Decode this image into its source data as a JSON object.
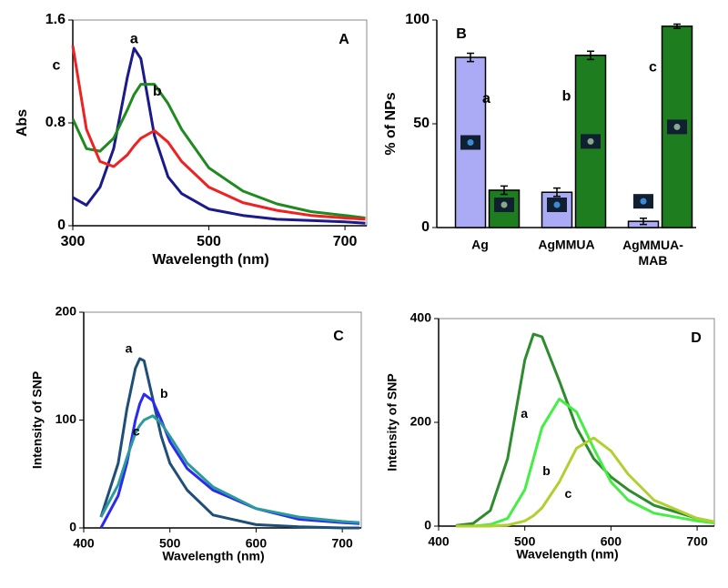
{
  "chart_data": [
    {
      "type": "line",
      "title": "A",
      "xlabel": "Wavelength (nm)",
      "ylabel": "Abs",
      "frame": true,
      "x": [
        300,
        320,
        340,
        360,
        380,
        390,
        400,
        420,
        440,
        460,
        500,
        550,
        600,
        650,
        700,
        730
      ],
      "xlim": [
        300,
        732
      ],
      "xticks": [
        300,
        500,
        700
      ],
      "ylim": [
        0,
        1.6
      ],
      "yticks": [
        0,
        0.8,
        1.6
      ],
      "series": [
        {
          "name": "a",
          "color": "#1a1a8c",
          "values": [
            0.22,
            0.16,
            0.3,
            0.6,
            1.15,
            1.38,
            1.3,
            0.7,
            0.38,
            0.25,
            0.13,
            0.08,
            0.05,
            0.04,
            0.03,
            0.02
          ]
        },
        {
          "name": "b",
          "color": "#1f8a1f",
          "values": [
            0.83,
            0.6,
            0.58,
            0.68,
            0.9,
            1.02,
            1.1,
            1.1,
            0.95,
            0.75,
            0.45,
            0.27,
            0.17,
            0.11,
            0.08,
            0.06
          ]
        },
        {
          "name": "c",
          "color": "#ee2222",
          "values": [
            1.4,
            0.75,
            0.5,
            0.46,
            0.55,
            0.62,
            0.68,
            0.74,
            0.65,
            0.5,
            0.3,
            0.18,
            0.12,
            0.08,
            0.06,
            0.05
          ]
        }
      ]
    },
    {
      "type": "bar",
      "title": "B",
      "ylabel": "% of NPs",
      "frame": false,
      "categories": [
        "Ag",
        "AgMMUA",
        "AgMMUA-MAB"
      ],
      "annotations": [
        "a",
        "b",
        "c"
      ],
      "ylim": [
        0,
        100
      ],
      "yticks": [
        0,
        50,
        100
      ],
      "series": [
        {
          "color": "#aaaaf5",
          "values": [
            82,
            17,
            3
          ],
          "errors": [
            2,
            2,
            1.5
          ]
        },
        {
          "color": "#1e7d1e",
          "values": [
            18,
            83,
            97
          ],
          "errors": [
            2,
            2,
            1
          ]
        }
      ]
    },
    {
      "type": "line",
      "title": "C",
      "xlabel": "Wavelength (nm)",
      "ylabel": "Intensity of SNP",
      "frame": true,
      "x": [
        420,
        440,
        450,
        460,
        465,
        470,
        480,
        490,
        500,
        520,
        550,
        600,
        650,
        700,
        720
      ],
      "xlim": [
        400,
        722
      ],
      "xticks": [
        400,
        500,
        600,
        700
      ],
      "ylim": [
        0,
        200
      ],
      "yticks": [
        0,
        100,
        200
      ],
      "series": [
        {
          "name": "a",
          "color": "#1f4e79",
          "values": [
            10,
            60,
            110,
            148,
            157,
            155,
            120,
            85,
            60,
            35,
            12,
            3,
            1,
            0,
            0
          ]
        },
        {
          "name": "b",
          "color": "#2a2af0",
          "values": [
            0,
            30,
            60,
            100,
            115,
            124,
            118,
            100,
            80,
            55,
            35,
            18,
            8,
            5,
            4
          ]
        },
        {
          "name": "c",
          "color": "#2a9a9a",
          "values": [
            10,
            40,
            65,
            88,
            95,
            100,
            104,
            97,
            85,
            60,
            38,
            18,
            10,
            6,
            5
          ]
        }
      ]
    },
    {
      "type": "line",
      "title": "D",
      "xlabel": "Wavelength (nm)",
      "ylabel": "Intensity of SNP",
      "frame": true,
      "x": [
        420,
        440,
        460,
        480,
        500,
        510,
        520,
        540,
        560,
        580,
        600,
        620,
        650,
        700,
        720
      ],
      "xlim": [
        400,
        720
      ],
      "xticks": [
        400,
        500,
        600,
        700
      ],
      "ylim": [
        0,
        400
      ],
      "yticks": [
        0,
        200,
        400
      ],
      "series": [
        {
          "name": "a",
          "color": "#2e8b2e",
          "values": [
            1,
            5,
            30,
            130,
            320,
            370,
            365,
            280,
            190,
            130,
            95,
            70,
            40,
            15,
            8
          ]
        },
        {
          "name": "b",
          "color": "#44ee44",
          "values": [
            0,
            0,
            3,
            15,
            70,
            130,
            190,
            245,
            220,
            150,
            85,
            50,
            25,
            10,
            6
          ]
        },
        {
          "name": "c",
          "color": "#b0d030",
          "values": [
            0,
            0,
            0,
            2,
            10,
            20,
            35,
            85,
            150,
            170,
            145,
            100,
            50,
            15,
            8
          ]
        }
      ]
    }
  ]
}
